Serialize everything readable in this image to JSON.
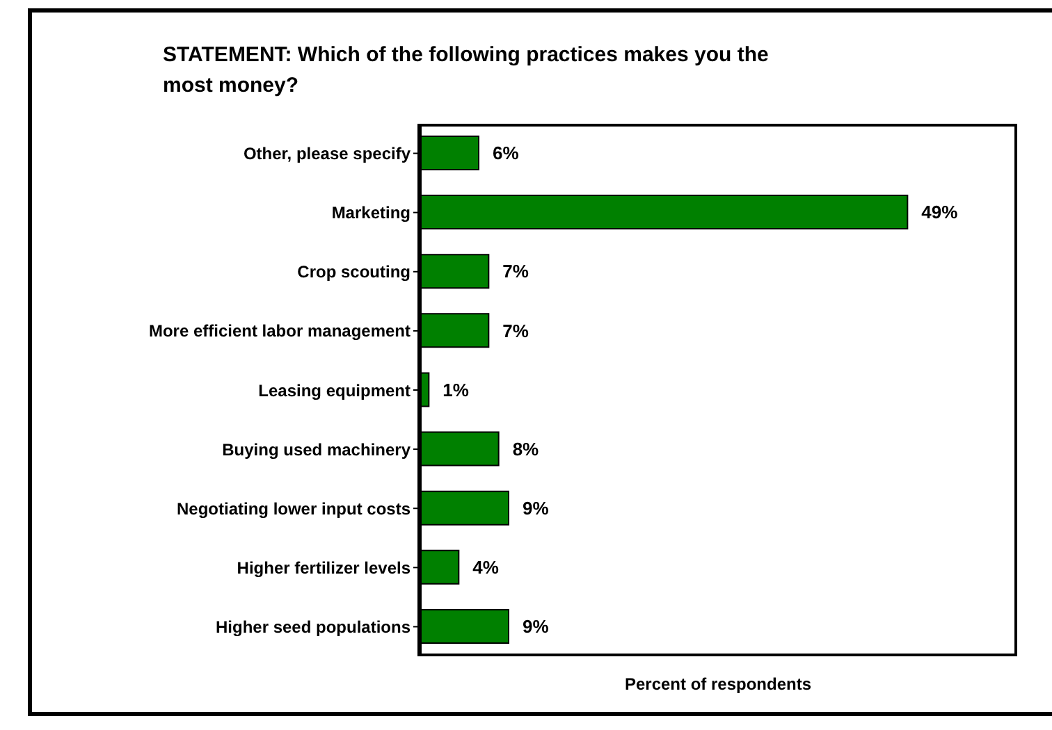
{
  "chart_data": {
    "type": "bar",
    "orientation": "horizontal",
    "title": "STATEMENT:  Which of the following practices makes you the most money?",
    "xlabel": "Percent of respondents",
    "categories": [
      "Other, please specify",
      "Marketing",
      "Crop scouting",
      "More efficient labor management",
      "Leasing equipment",
      "Buying used machinery",
      "Negotiating lower input costs",
      "Higher fertilizer levels",
      "Higher seed populations"
    ],
    "values": [
      6,
      49,
      7,
      7,
      1,
      8,
      9,
      4,
      9
    ],
    "value_labels": [
      "6%",
      "49%",
      "7%",
      "7%",
      "1%",
      "8%",
      "9%",
      "4%",
      "9%"
    ],
    "color": "#008000",
    "xlim": [
      0,
      60
    ]
  }
}
